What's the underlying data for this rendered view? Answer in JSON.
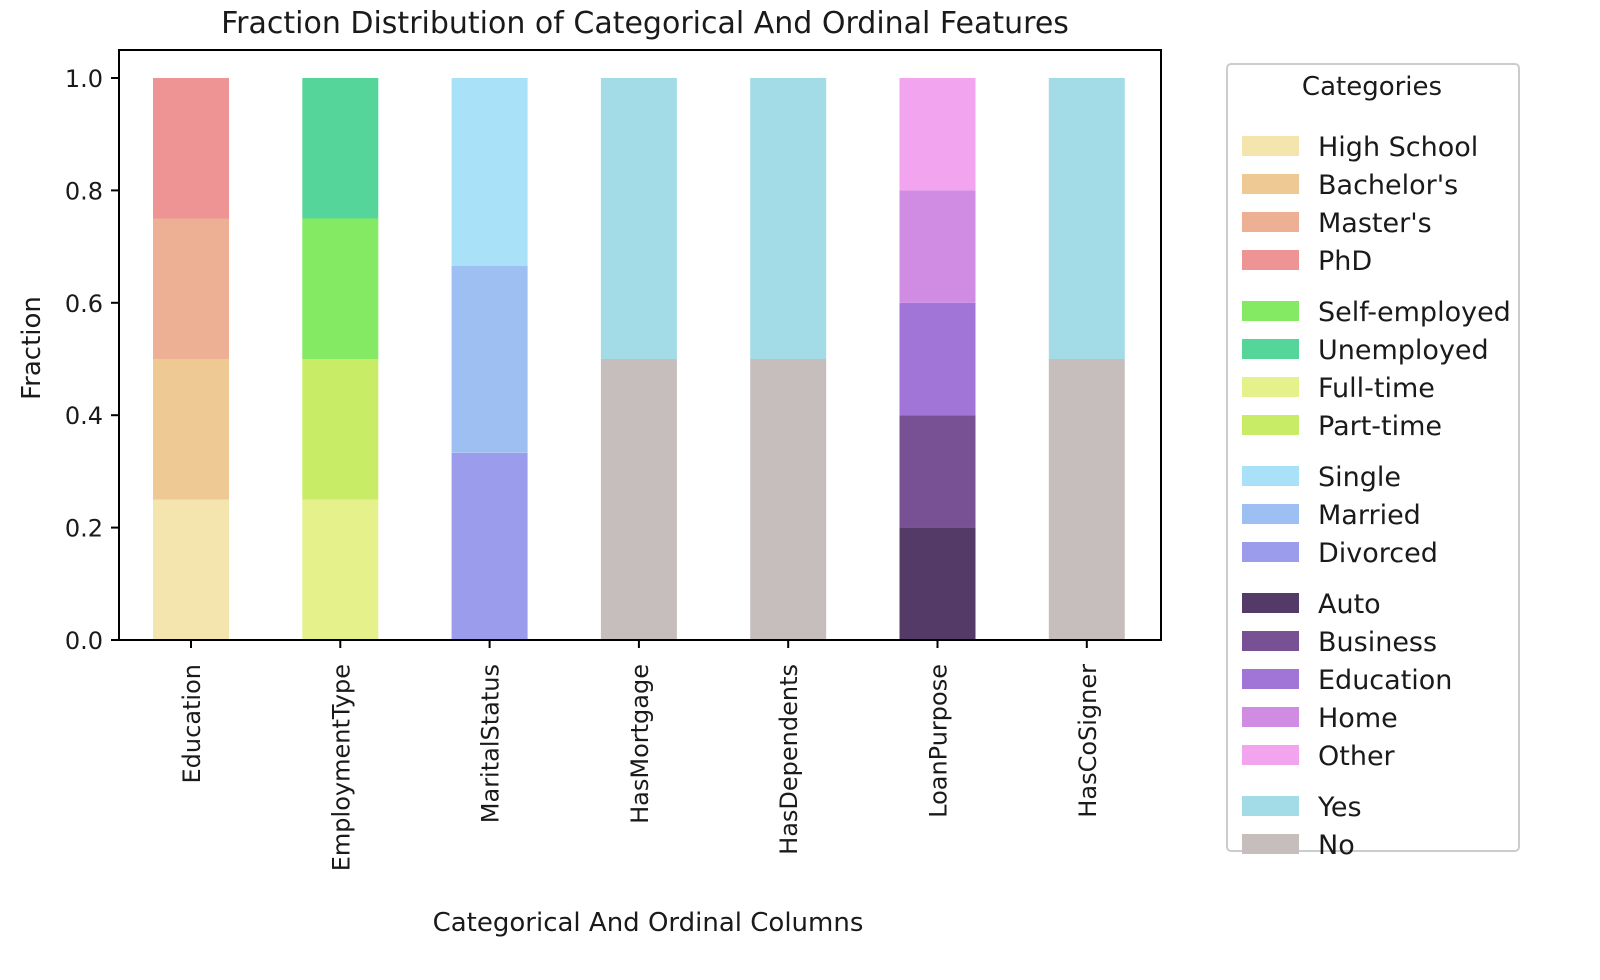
{
  "chart_data": {
    "type": "bar",
    "stacked": true,
    "title": "Fraction Distribution of Categorical And Ordinal Features",
    "xlabel": "Categorical And Ordinal Columns",
    "ylabel": "Fraction",
    "ylim": [
      0,
      1
    ],
    "yticks": [
      "0.0",
      "0.2",
      "0.4",
      "0.6",
      "0.8",
      "1.0"
    ],
    "grid": false,
    "legend_title": "Categories",
    "legend_position": "right",
    "categories": [
      "Education",
      "EmploymentType",
      "MaritalStatus",
      "HasMortgage",
      "HasDependents",
      "LoanPurpose",
      "HasCoSigner"
    ],
    "stacks": [
      {
        "column": "Education",
        "segments": [
          {
            "name": "High School",
            "value": 0.25,
            "color": "#f3e5ad"
          },
          {
            "name": "Bachelor's",
            "value": 0.25,
            "color": "#efc994"
          },
          {
            "name": "Master's",
            "value": 0.25,
            "color": "#edb094"
          },
          {
            "name": "PhD",
            "value": 0.25,
            "color": "#ee9494"
          }
        ]
      },
      {
        "column": "EmploymentType",
        "segments": [
          {
            "name": "Full-time",
            "value": 0.25,
            "color": "#e5f28c"
          },
          {
            "name": "Part-time",
            "value": 0.25,
            "color": "#c8ec66"
          },
          {
            "name": "Self-employed",
            "value": 0.25,
            "color": "#84e963"
          },
          {
            "name": "Unemployed",
            "value": 0.25,
            "color": "#55d59a"
          }
        ]
      },
      {
        "column": "MaritalStatus",
        "segments": [
          {
            "name": "Divorced",
            "value": 0.333,
            "color": "#9b9ceb"
          },
          {
            "name": "Married",
            "value": 0.333,
            "color": "#9dbff1"
          },
          {
            "name": "Single",
            "value": 0.334,
            "color": "#a9e2f8"
          }
        ]
      },
      {
        "column": "HasMortgage",
        "segments": [
          {
            "name": "No",
            "value": 0.5,
            "color": "#c6bebd"
          },
          {
            "name": "Yes",
            "value": 0.5,
            "color": "#a3dbe6"
          }
        ]
      },
      {
        "column": "HasDependents",
        "segments": [
          {
            "name": "No",
            "value": 0.5,
            "color": "#c6bebd"
          },
          {
            "name": "Yes",
            "value": 0.5,
            "color": "#a3dbe6"
          }
        ]
      },
      {
        "column": "LoanPurpose",
        "segments": [
          {
            "name": "Auto",
            "value": 0.2,
            "color": "#533a67"
          },
          {
            "name": "Business",
            "value": 0.2,
            "color": "#785194"
          },
          {
            "name": "Education",
            "value": 0.2,
            "color": "#a174d7"
          },
          {
            "name": "Home",
            "value": 0.2,
            "color": "#d08be3"
          },
          {
            "name": "Other",
            "value": 0.2,
            "color": "#f2a4ee"
          }
        ]
      },
      {
        "column": "HasCoSigner",
        "segments": [
          {
            "name": "No",
            "value": 0.5,
            "color": "#c6bebd"
          },
          {
            "name": "Yes",
            "value": 0.5,
            "color": "#a3dbe6"
          }
        ]
      }
    ],
    "legend_groups": [
      [
        {
          "label": "High School",
          "color": "#f3e5ad"
        },
        {
          "label": "Bachelor's",
          "color": "#efc994"
        },
        {
          "label": "Master's",
          "color": "#edb094"
        },
        {
          "label": "PhD",
          "color": "#ee9494"
        }
      ],
      [
        {
          "label": "Self-employed",
          "color": "#84e963"
        },
        {
          "label": "Unemployed",
          "color": "#55d59a"
        },
        {
          "label": "Full-time",
          "color": "#e5f28c"
        },
        {
          "label": "Part-time",
          "color": "#c8ec66"
        }
      ],
      [
        {
          "label": "Single",
          "color": "#a9e2f8"
        },
        {
          "label": "Married",
          "color": "#9dbff1"
        },
        {
          "label": "Divorced",
          "color": "#9b9ceb"
        }
      ],
      [
        {
          "label": "Auto",
          "color": "#533a67"
        },
        {
          "label": "Business",
          "color": "#785194"
        },
        {
          "label": "Education",
          "color": "#a174d7"
        },
        {
          "label": "Home",
          "color": "#d08be3"
        },
        {
          "label": "Other",
          "color": "#f2a4ee"
        }
      ],
      [
        {
          "label": "Yes",
          "color": "#a3dbe6"
        },
        {
          "label": "No",
          "color": "#c6bebd"
        }
      ]
    ]
  }
}
